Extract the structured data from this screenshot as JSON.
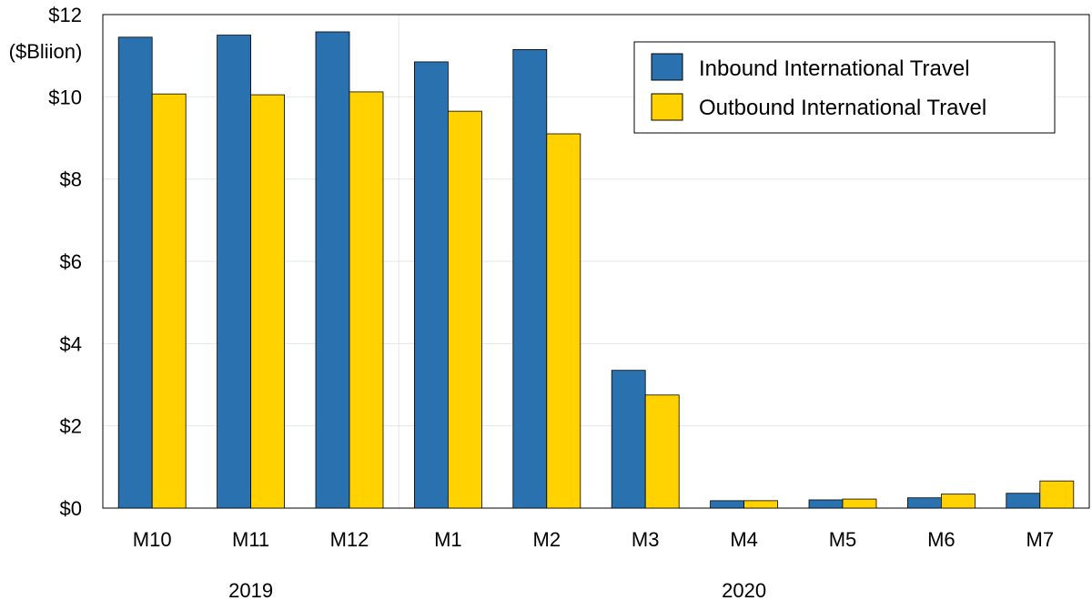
{
  "chart_data": {
    "type": "bar",
    "ylabel": "($Bliion)",
    "ylim": [
      0,
      12
    ],
    "yticks": [
      "$0",
      "$2",
      "$4",
      "$6",
      "$8",
      "$10",
      "$12"
    ],
    "ytick_values": [
      0,
      2,
      4,
      6,
      8,
      10,
      12
    ],
    "categories": [
      "M10",
      "M11",
      "M12",
      "M1",
      "M2",
      "M3",
      "M4",
      "M5",
      "M6",
      "M7"
    ],
    "year_groups": [
      {
        "label": "2019",
        "start": 0,
        "end": 2
      },
      {
        "label": "2020",
        "start": 3,
        "end": 9
      }
    ],
    "series": [
      {
        "name": "Inbound International Travel",
        "color": "#2a72af",
        "values": [
          11.45,
          11.5,
          11.58,
          10.85,
          11.15,
          3.35,
          0.18,
          0.2,
          0.25,
          0.36
        ]
      },
      {
        "name": "Outbound International Travel",
        "color": "#ffd200",
        "values": [
          10.07,
          10.05,
          10.12,
          9.65,
          9.1,
          2.75,
          0.18,
          0.22,
          0.34,
          0.66
        ]
      }
    ],
    "legend_position": "top-right",
    "grid": true
  }
}
